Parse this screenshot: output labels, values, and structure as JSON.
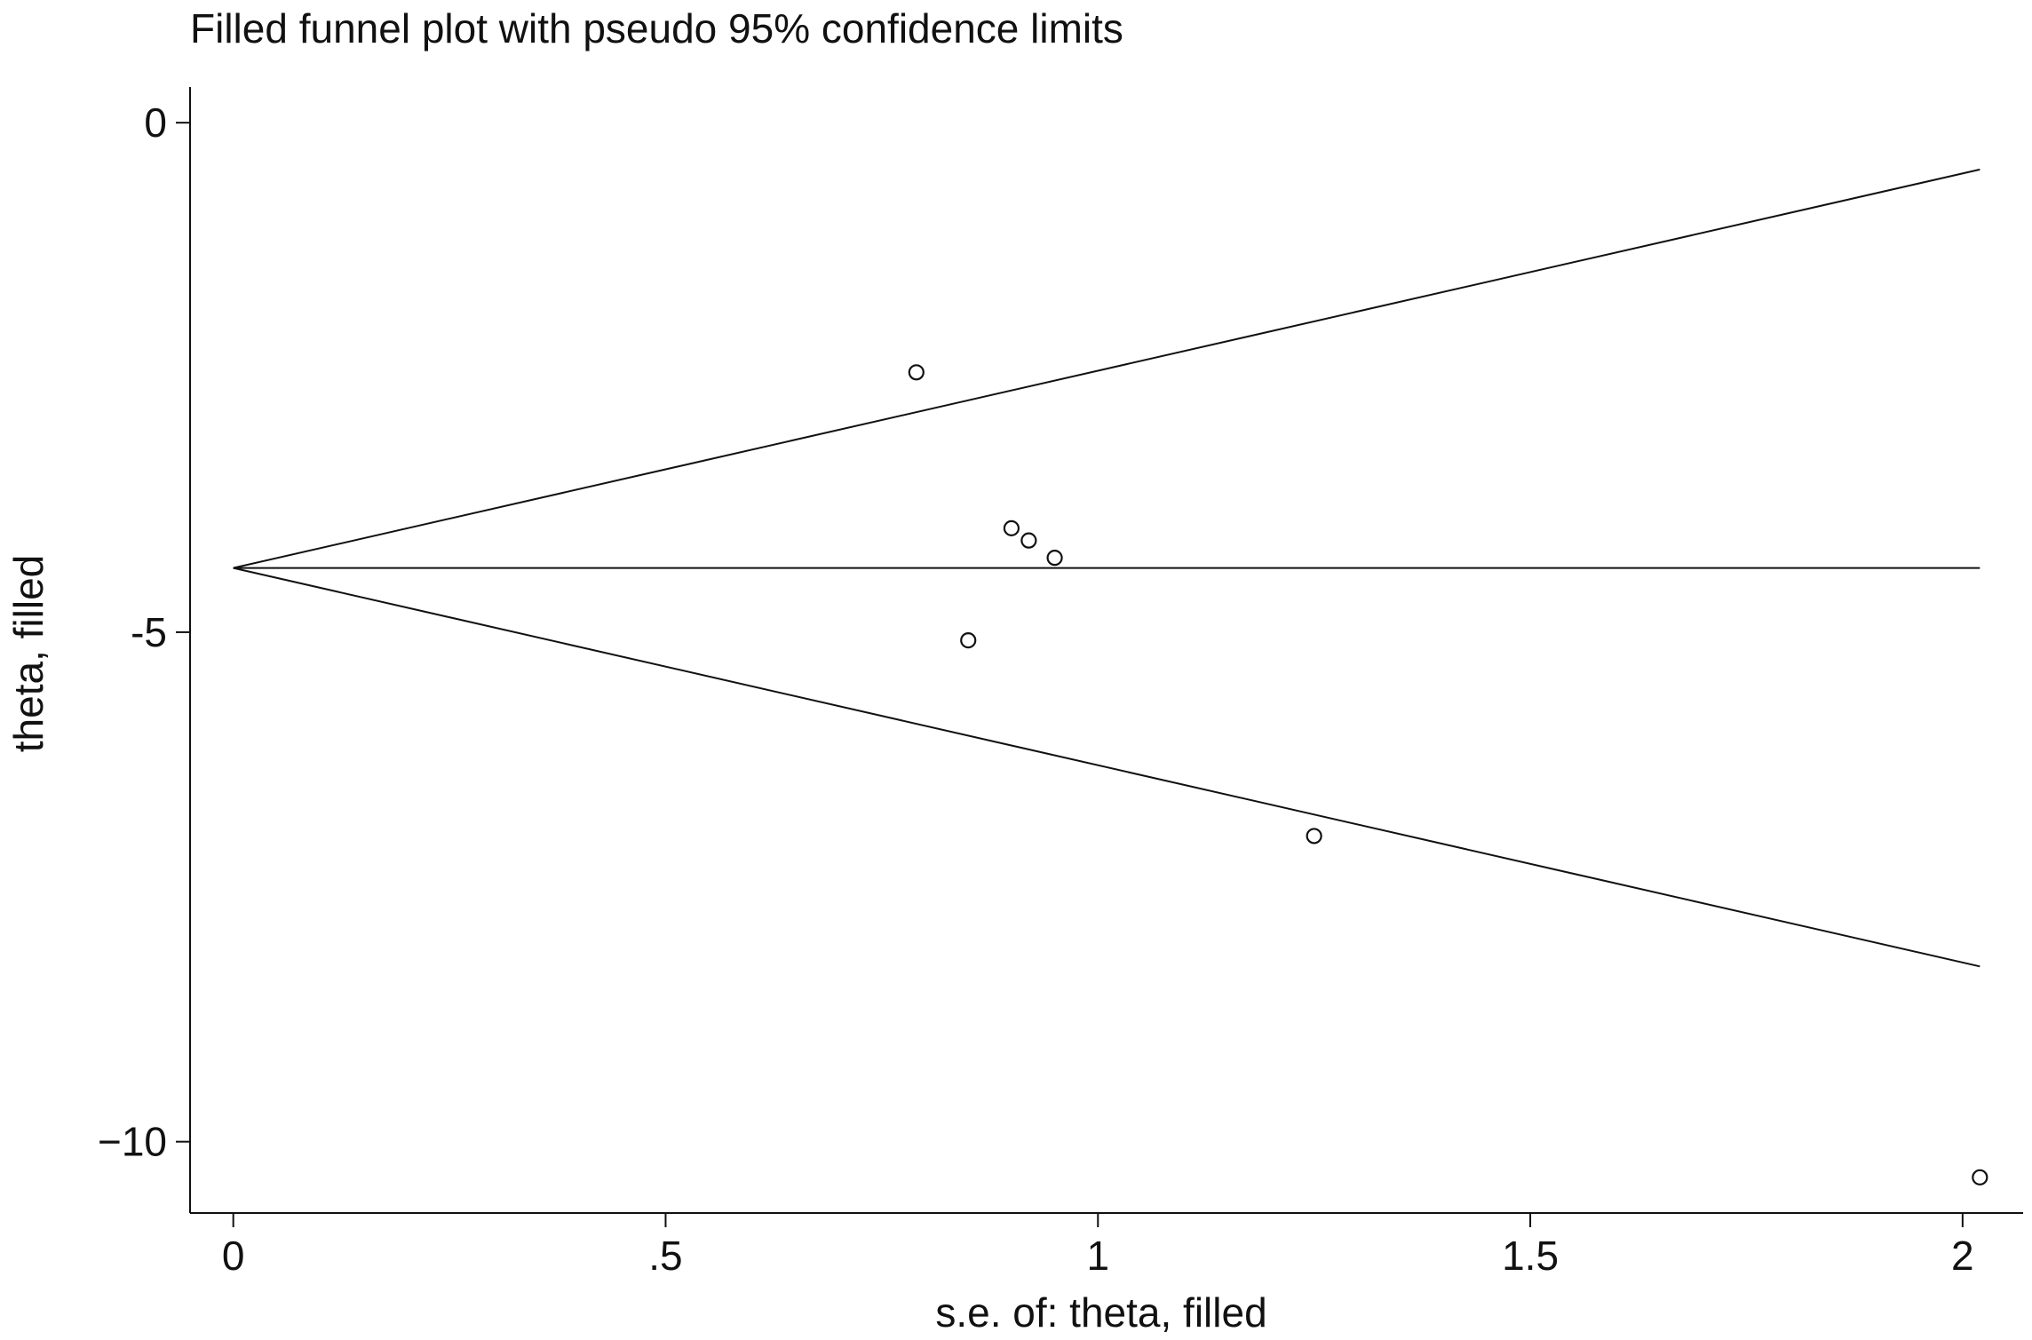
{
  "chart_data": {
    "type": "scatter",
    "title": "Filled funnel plot with pseudo 95% confidence limits",
    "xlabel": "s.e. of: theta, filled",
    "ylabel": "theta, filled",
    "xlim": [
      -0.05,
      2.07
    ],
    "ylim": [
      -10.7,
      0.35
    ],
    "x_ticks": [
      {
        "value": 0,
        "label": "0"
      },
      {
        "value": 0.5,
        "label": ".5"
      },
      {
        "value": 1,
        "label": "1"
      },
      {
        "value": 1.5,
        "label": "1.5"
      },
      {
        "value": 2,
        "label": "2"
      }
    ],
    "y_ticks": [
      {
        "value": 0,
        "label": "0"
      },
      {
        "value": -5,
        "label": "-5"
      },
      {
        "value": -10,
        "label": "−10"
      }
    ],
    "grid": false,
    "legend": "none",
    "pooled_estimate": -4.37,
    "ci_multiplier": 1.96,
    "series": [
      {
        "marker": "hollow-circle",
        "points": [
          {
            "x": 0.79,
            "y": -2.45
          },
          {
            "x": 0.85,
            "y": -5.08
          },
          {
            "x": 0.9,
            "y": -3.98
          },
          {
            "x": 0.92,
            "y": -4.1
          },
          {
            "x": 0.95,
            "y": -4.27
          },
          {
            "x": 1.25,
            "y": -7.0
          },
          {
            "x": 2.02,
            "y": -10.35
          }
        ]
      }
    ],
    "lines": [
      {
        "kind": "upper-confidence-limit",
        "x": [
          0,
          2.02
        ],
        "y": [
          -4.37,
          -0.46
        ]
      },
      {
        "kind": "pooled-estimate",
        "x": [
          0,
          2.02
        ],
        "y": [
          -4.37,
          -4.37
        ]
      },
      {
        "kind": "lower-confidence-limit",
        "x": [
          0,
          2.02
        ],
        "y": [
          -4.37,
          -8.28
        ]
      }
    ],
    "colors": {
      "ink": "#111111",
      "background": "#ffffff"
    }
  }
}
